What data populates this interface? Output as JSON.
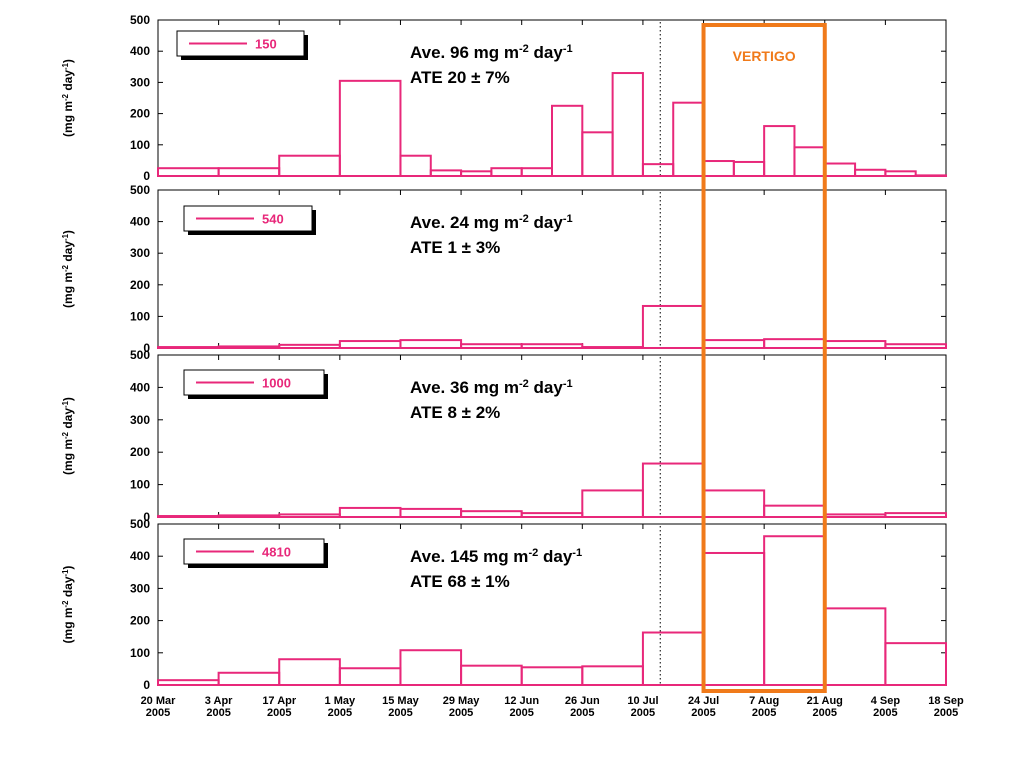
{
  "chart_data": {
    "type": "bar",
    "x_ticks": [
      {
        "date": "2005-03-20",
        "label": [
          "20 Mar",
          "2005"
        ]
      },
      {
        "date": "2005-04-03",
        "label": [
          "3 Apr",
          "2005"
        ]
      },
      {
        "date": "2005-04-17",
        "label": [
          "17 Apr",
          "2005"
        ]
      },
      {
        "date": "2005-05-01",
        "label": [
          "1 May",
          "2005"
        ]
      },
      {
        "date": "2005-05-15",
        "label": [
          "15 May",
          "2005"
        ]
      },
      {
        "date": "2005-05-29",
        "label": [
          "29 May",
          "2005"
        ]
      },
      {
        "date": "2005-06-12",
        "label": [
          "12 Jun",
          "2005"
        ]
      },
      {
        "date": "2005-06-26",
        "label": [
          "26 Jun",
          "2005"
        ]
      },
      {
        "date": "2005-07-10",
        "label": [
          "10 Jul",
          "2005"
        ]
      },
      {
        "date": "2005-07-24",
        "label": [
          "24 Jul",
          "2005"
        ]
      },
      {
        "date": "2005-08-07",
        "label": [
          "7 Aug",
          "2005"
        ]
      },
      {
        "date": "2005-08-21",
        "label": [
          "21 Aug",
          "2005"
        ]
      },
      {
        "date": "2005-09-04",
        "label": [
          "4 Sep",
          "2005"
        ]
      },
      {
        "date": "2005-09-18",
        "label": [
          "18 Sep",
          "2005"
        ]
      }
    ],
    "ylim": [
      0,
      500
    ],
    "y_ticks": [
      0,
      100,
      200,
      300,
      400,
      500
    ],
    "dotted_line_date": "2005-07-14",
    "highlight": {
      "label": "VERTIGO",
      "start": "2005-07-24",
      "end": "2005-08-21",
      "color": "#f07a1a"
    },
    "bar_color": "#e8287a",
    "panels": [
      {
        "legend": "150",
        "ylabel": "(mg m-2 day-1)",
        "annotation_line1": "Ave. 96 mg m-2 day-1",
        "annotation_line2": "ATE 20 ± 7%",
        "bins": [
          {
            "start": "2005-03-20",
            "end": "2005-04-03",
            "value": 25
          },
          {
            "start": "2005-04-03",
            "end": "2005-04-17",
            "value": 25
          },
          {
            "start": "2005-04-17",
            "end": "2005-05-01",
            "value": 65
          },
          {
            "start": "2005-05-01",
            "end": "2005-05-15",
            "value": 305
          },
          {
            "start": "2005-05-15",
            "end": "2005-05-22",
            "value": 65
          },
          {
            "start": "2005-05-22",
            "end": "2005-05-29",
            "value": 18
          },
          {
            "start": "2005-05-29",
            "end": "2005-06-05",
            "value": 15
          },
          {
            "start": "2005-06-05",
            "end": "2005-06-12",
            "value": 25
          },
          {
            "start": "2005-06-12",
            "end": "2005-06-19",
            "value": 25
          },
          {
            "start": "2005-06-19",
            "end": "2005-06-26",
            "value": 225
          },
          {
            "start": "2005-06-26",
            "end": "2005-07-03",
            "value": 140
          },
          {
            "start": "2005-07-03",
            "end": "2005-07-10",
            "value": 330
          },
          {
            "start": "2005-07-10",
            "end": "2005-07-17",
            "value": 38
          },
          {
            "start": "2005-07-17",
            "end": "2005-07-24",
            "value": 235
          },
          {
            "start": "2005-07-24",
            "end": "2005-07-31",
            "value": 48
          },
          {
            "start": "2005-07-31",
            "end": "2005-08-07",
            "value": 45
          },
          {
            "start": "2005-08-07",
            "end": "2005-08-14",
            "value": 160
          },
          {
            "start": "2005-08-14",
            "end": "2005-08-21",
            "value": 92
          },
          {
            "start": "2005-08-21",
            "end": "2005-08-28",
            "value": 40
          },
          {
            "start": "2005-08-28",
            "end": "2005-09-04",
            "value": 20
          },
          {
            "start": "2005-09-04",
            "end": "2005-09-11",
            "value": 15
          },
          {
            "start": "2005-09-11",
            "end": "2005-09-18",
            "value": 2
          }
        ]
      },
      {
        "legend": "540",
        "ylabel": "(mg m-2 day-1)",
        "annotation_line1": "Ave. 24 mg m-2 day-1",
        "annotation_line2": "ATE 1 ± 3%",
        "bins": [
          {
            "start": "2005-03-20",
            "end": "2005-04-03",
            "value": 3
          },
          {
            "start": "2005-04-03",
            "end": "2005-04-17",
            "value": 5
          },
          {
            "start": "2005-04-17",
            "end": "2005-05-01",
            "value": 10
          },
          {
            "start": "2005-05-01",
            "end": "2005-05-15",
            "value": 22
          },
          {
            "start": "2005-05-15",
            "end": "2005-05-29",
            "value": 25
          },
          {
            "start": "2005-05-29",
            "end": "2005-06-12",
            "value": 12
          },
          {
            "start": "2005-06-12",
            "end": "2005-06-26",
            "value": 12
          },
          {
            "start": "2005-06-26",
            "end": "2005-07-10",
            "value": 3
          },
          {
            "start": "2005-07-10",
            "end": "2005-07-24",
            "value": 133
          },
          {
            "start": "2005-07-24",
            "end": "2005-08-07",
            "value": 25
          },
          {
            "start": "2005-08-07",
            "end": "2005-08-21",
            "value": 28
          },
          {
            "start": "2005-08-21",
            "end": "2005-09-04",
            "value": 22
          },
          {
            "start": "2005-09-04",
            "end": "2005-09-18",
            "value": 12
          }
        ]
      },
      {
        "legend": "1000",
        "ylabel": "(mg m-2 day-1)",
        "annotation_line1": "Ave. 36 mg m-2 day-1",
        "annotation_line2": "ATE 8 ± 2%",
        "bins": [
          {
            "start": "2005-03-20",
            "end": "2005-04-03",
            "value": 3
          },
          {
            "start": "2005-04-03",
            "end": "2005-04-17",
            "value": 5
          },
          {
            "start": "2005-04-17",
            "end": "2005-05-01",
            "value": 8
          },
          {
            "start": "2005-05-01",
            "end": "2005-05-15",
            "value": 28
          },
          {
            "start": "2005-05-15",
            "end": "2005-05-29",
            "value": 25
          },
          {
            "start": "2005-05-29",
            "end": "2005-06-12",
            "value": 18
          },
          {
            "start": "2005-06-12",
            "end": "2005-06-26",
            "value": 12
          },
          {
            "start": "2005-06-26",
            "end": "2005-07-10",
            "value": 82
          },
          {
            "start": "2005-07-10",
            "end": "2005-07-24",
            "value": 165
          },
          {
            "start": "2005-07-24",
            "end": "2005-08-07",
            "value": 82
          },
          {
            "start": "2005-08-07",
            "end": "2005-08-21",
            "value": 35
          },
          {
            "start": "2005-08-21",
            "end": "2005-09-04",
            "value": 8
          },
          {
            "start": "2005-09-04",
            "end": "2005-09-18",
            "value": 12
          }
        ]
      },
      {
        "legend": "4810",
        "ylabel": "(mg m-2 day-1)",
        "annotation_line1": "Ave. 145 mg m-2 day-1",
        "annotation_line2": "ATE 68 ± 1%",
        "bins": [
          {
            "start": "2005-03-20",
            "end": "2005-04-03",
            "value": 15
          },
          {
            "start": "2005-04-03",
            "end": "2005-04-17",
            "value": 38
          },
          {
            "start": "2005-04-17",
            "end": "2005-05-01",
            "value": 80
          },
          {
            "start": "2005-05-01",
            "end": "2005-05-15",
            "value": 52
          },
          {
            "start": "2005-05-15",
            "end": "2005-05-29",
            "value": 108
          },
          {
            "start": "2005-05-29",
            "end": "2005-06-12",
            "value": 60
          },
          {
            "start": "2005-06-12",
            "end": "2005-06-26",
            "value": 55
          },
          {
            "start": "2005-06-26",
            "end": "2005-07-10",
            "value": 58
          },
          {
            "start": "2005-07-10",
            "end": "2005-07-24",
            "value": 163
          },
          {
            "start": "2005-07-24",
            "end": "2005-08-07",
            "value": 410
          },
          {
            "start": "2005-08-07",
            "end": "2005-08-21",
            "value": 462
          },
          {
            "start": "2005-08-21",
            "end": "2005-09-04",
            "value": 238
          },
          {
            "start": "2005-09-04",
            "end": "2005-09-18",
            "value": 130
          }
        ]
      }
    ]
  }
}
